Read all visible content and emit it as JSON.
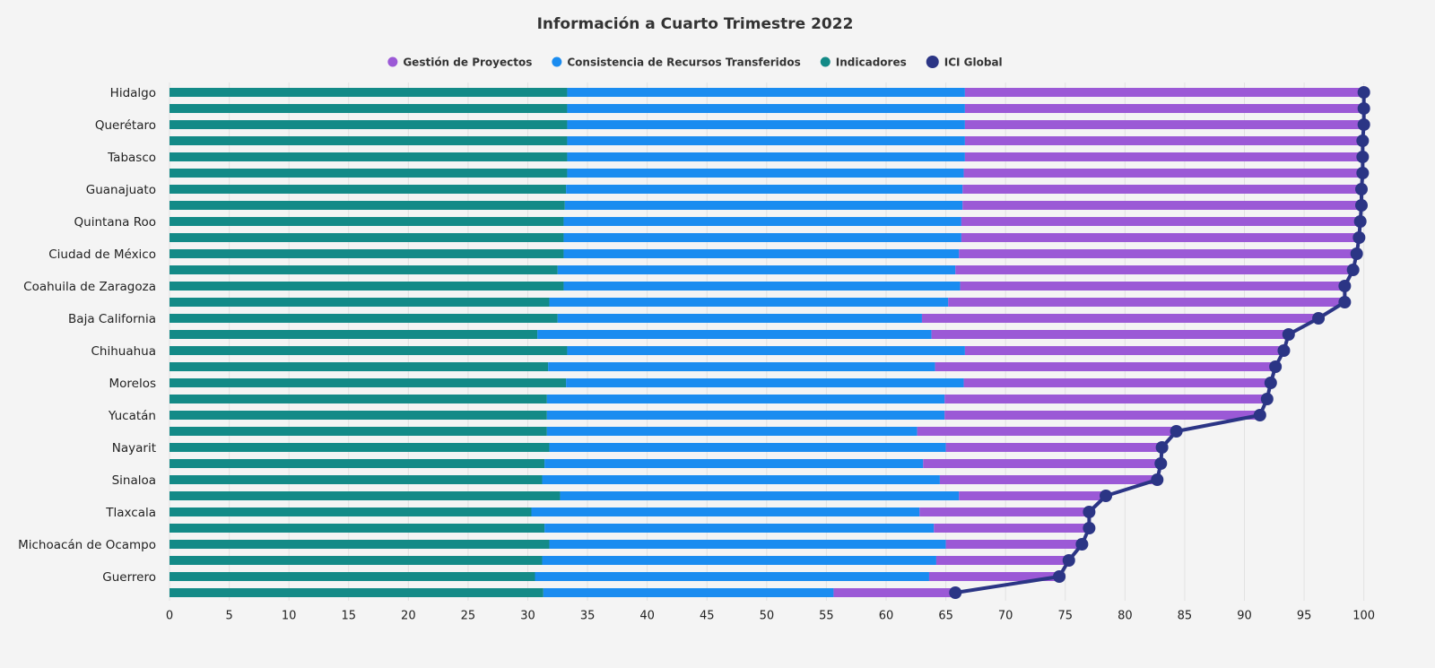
{
  "chart_data": {
    "type": "bar",
    "orientation": "horizontal",
    "stacked": true,
    "title": "Información a Cuarto Trimestre 2022",
    "categories": [
      "Hidalgo",
      null,
      "Querétaro",
      null,
      "Tabasco",
      null,
      "Guanajuato",
      null,
      "Quintana Roo",
      null,
      "Ciudad de México",
      null,
      "Coahuila de Zaragoza",
      null,
      "Baja California",
      null,
      "Chihuahua",
      null,
      "Morelos",
      null,
      "Yucatán",
      null,
      "Nayarit",
      null,
      "Sinaloa",
      null,
      "Tlaxcala",
      null,
      "Michoacán de Ocampo",
      null,
      "Guerrero",
      null
    ],
    "series": [
      {
        "name": "Gestión de Proyectos",
        "color": "#9b59d6",
        "values": [
          33.4,
          33.4,
          33.4,
          33.3,
          33.3,
          33.4,
          33.4,
          33.4,
          33.4,
          33.3,
          33.3,
          33.3,
          32.2,
          33.2,
          33.2,
          29.9,
          26.7,
          28.5,
          25.7,
          27.0,
          26.4,
          21.7,
          18.1,
          19.9,
          18.2,
          12.3,
          14.2,
          13.0,
          11.4,
          11.1,
          10.9,
          10.2
        ]
      },
      {
        "name": "Consistencia de Recursos Transferidos",
        "color": "#1a8cf0",
        "values": [
          33.3,
          33.3,
          33.3,
          33.3,
          33.3,
          33.2,
          33.2,
          33.3,
          33.3,
          33.3,
          33.1,
          33.3,
          33.2,
          33.4,
          30.5,
          33.0,
          33.3,
          32.4,
          33.3,
          33.3,
          33.3,
          31.0,
          33.2,
          31.7,
          33.3,
          33.4,
          32.5,
          32.6,
          33.2,
          33.0,
          33.0,
          24.3
        ]
      },
      {
        "name": "Indicadores",
        "color": "#138a87",
        "values": [
          33.3,
          33.3,
          33.3,
          33.3,
          33.3,
          33.3,
          33.2,
          33.1,
          33.0,
          33.0,
          33.0,
          32.5,
          33.0,
          31.8,
          32.5,
          30.8,
          33.3,
          31.7,
          33.2,
          31.6,
          31.6,
          31.6,
          31.8,
          31.4,
          31.2,
          32.7,
          30.3,
          31.4,
          31.8,
          31.2,
          30.6,
          31.3
        ]
      },
      {
        "name": "ICI Global",
        "color": "#2b3585",
        "type": "line",
        "values": [
          100,
          100,
          100,
          99.9,
          99.9,
          99.9,
          99.8,
          99.8,
          99.7,
          99.6,
          99.4,
          99.1,
          98.4,
          98.4,
          96.2,
          93.7,
          93.3,
          92.6,
          92.2,
          91.9,
          91.3,
          84.3,
          83.1,
          83.0,
          82.7,
          78.4,
          77.0,
          77.0,
          76.4,
          75.3,
          74.5,
          65.8
        ]
      }
    ],
    "xlim": [
      0,
      100.7
    ],
    "xticks": [
      0,
      5,
      10,
      15,
      20,
      25,
      30,
      35,
      40,
      45,
      50,
      55,
      60,
      65,
      70,
      75,
      80,
      85,
      90,
      95,
      100
    ],
    "grid": true,
    "legend": "top"
  }
}
